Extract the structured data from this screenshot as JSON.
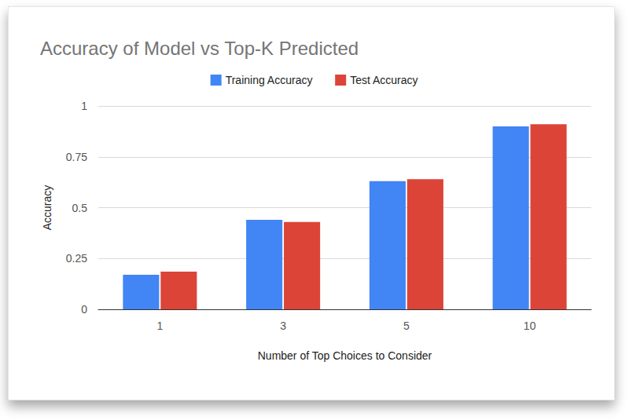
{
  "chart_data": {
    "type": "bar",
    "title": "Accuracy of Model vs Top-K Predicted",
    "x_label": "Number of Top Choices to Consider",
    "y_label": "Accuracy",
    "categories": [
      "1",
      "3",
      "5",
      "10"
    ],
    "series": [
      {
        "name": "Training Accuracy",
        "color": "#4285f4",
        "values": [
          0.17,
          0.44,
          0.63,
          0.9
        ]
      },
      {
        "name": "Test Accuracy",
        "color": "#db4437",
        "values": [
          0.185,
          0.43,
          0.64,
          0.91
        ]
      }
    ],
    "ylim": [
      0,
      1
    ],
    "yticks": [
      0,
      0.25,
      0.5,
      0.75,
      1
    ],
    "grid": true,
    "legend": "top"
  }
}
